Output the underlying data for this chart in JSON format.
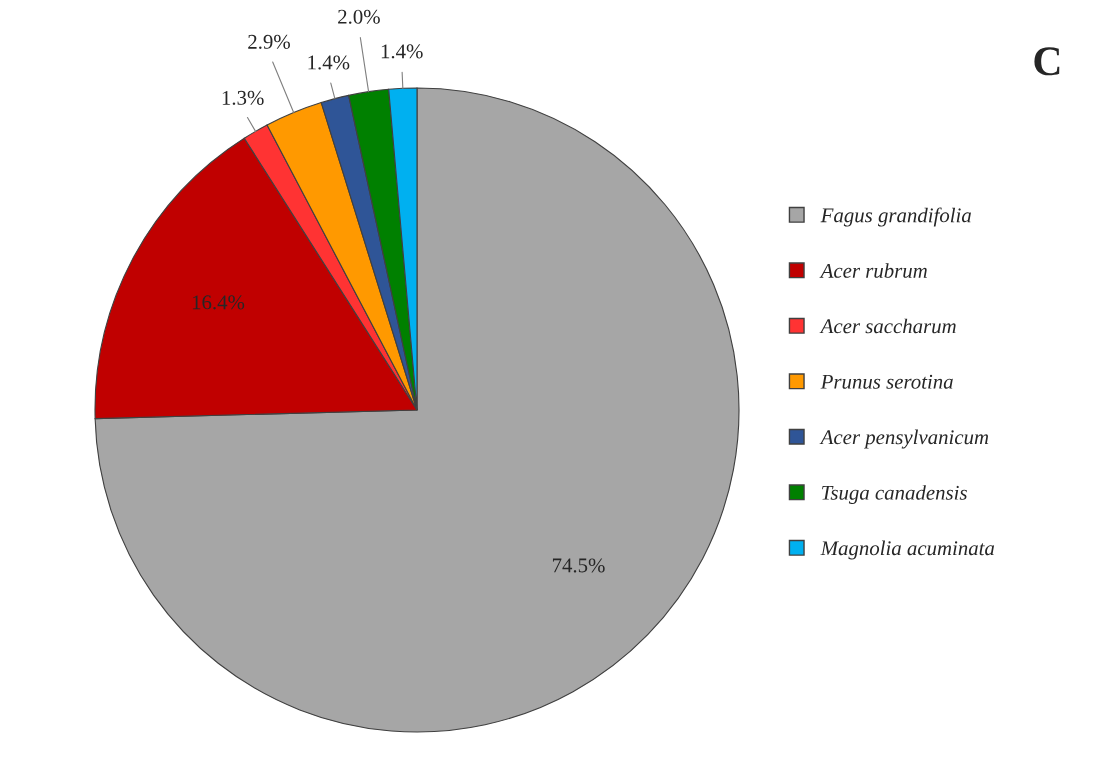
{
  "chart_data": {
    "type": "pie",
    "title": "C",
    "categories": [
      "Fagus grandifolia",
      "Acer rubrum",
      "Acer saccharum",
      "Prunus serotina",
      "Acer pensylvanicum",
      "Tsuga canadensis",
      "Magnolia acuminata"
    ],
    "values": [
      74.5,
      16.4,
      1.3,
      2.9,
      1.4,
      2.0,
      1.4
    ],
    "colors": [
      "#a6a6a6",
      "#c00000",
      "#ff3333",
      "#ff9900",
      "#2f5597",
      "#008000",
      "#00b0f0"
    ],
    "value_labels": [
      "74.5%",
      "16.4%",
      "1.3%",
      "2.9%",
      "1.4%",
      "2.0%",
      "1.4%"
    ],
    "legend": "right"
  }
}
